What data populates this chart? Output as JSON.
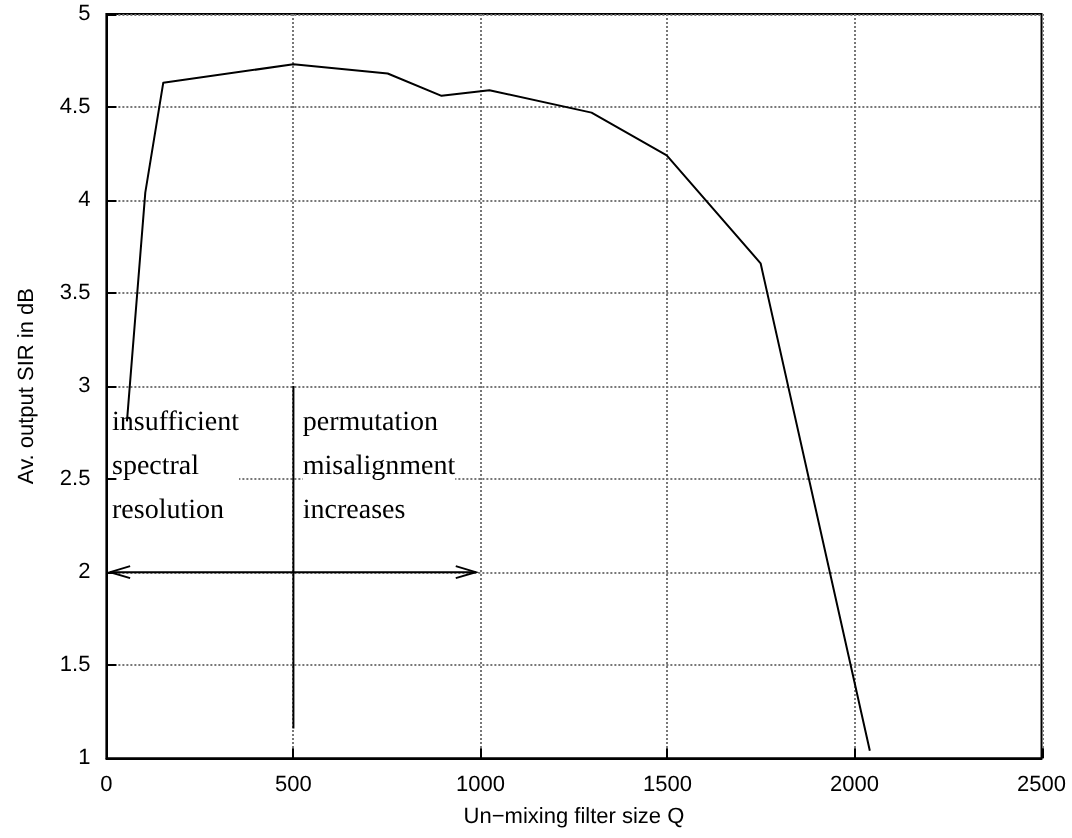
{
  "chart_data": {
    "type": "line",
    "xlabel": "Un−mixing filter size Q",
    "ylabel": "Av. output SIR in dB",
    "x": [
      55,
      104,
      152,
      500,
      752,
      896,
      1024,
      1297,
      1498,
      1749,
      2041
    ],
    "series": [
      {
        "color": "#000000",
        "values": [
          2.81,
          4.04,
          4.63,
          4.73,
          4.68,
          4.56,
          4.59,
          4.47,
          4.24,
          3.66,
          1.04
        ]
      }
    ],
    "xlim": [
      0,
      2500
    ],
    "xticks": [
      0,
      500,
      1000,
      1500,
      2000,
      2500
    ],
    "ylim": [
      1,
      5
    ],
    "yticks": [
      1,
      1.5,
      2,
      2.5,
      3,
      3.5,
      4,
      4.5,
      5
    ],
    "grid": true,
    "marker": "none",
    "line_style": "solid",
    "annotations": [
      "insufficient\nspectral\nresolution",
      "permutation\nmisalignment\nincreases"
    ]
  }
}
